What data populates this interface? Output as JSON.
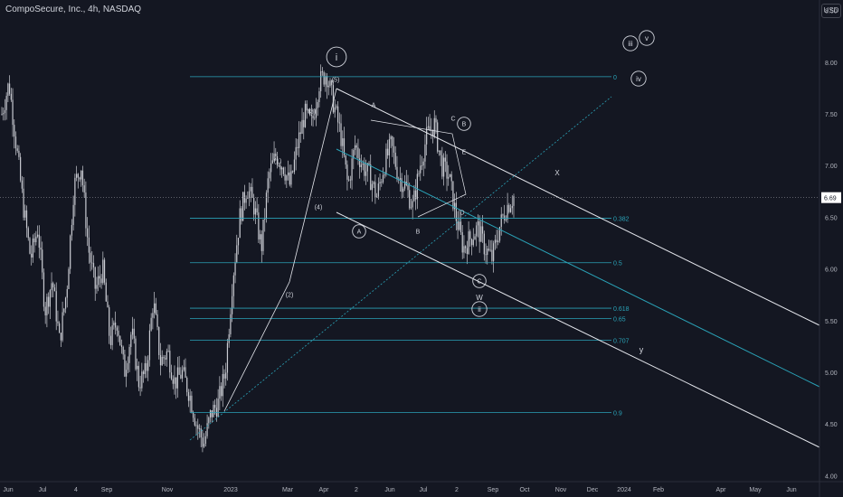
{
  "header": {
    "title": "CompoSecure, Inc., 4h, NASDAQ",
    "currency": "USD"
  },
  "colors": {
    "bg": "#141722",
    "candle": "#c9cbd2",
    "fib": "#2aa3b8",
    "channel": "#e6e8ee",
    "text": "#d1d4dc",
    "axis_text": "#b2b5be"
  },
  "chart_data": {
    "type": "candlestick",
    "title": "CompoSecure, Inc., 4h, NASDAQ",
    "x_ticks": [
      "Jun",
      "Jul",
      "4",
      "Sep",
      "Nov",
      "2023",
      "Mar",
      "Apr",
      "2",
      "Jun",
      "Jul",
      "2",
      "Sep",
      "Oct",
      "Nov",
      "Dec",
      "2024",
      "Feb",
      "Apr",
      "May",
      "Jun"
    ],
    "y_ticks": [
      "8.50",
      "8.00",
      "7.50",
      "7.00",
      "6.50",
      "6.00",
      "5.50",
      "5.00",
      "4.50",
      "4.00"
    ],
    "ylim": [
      3.95,
      8.55
    ],
    "last_price": "6.69",
    "price_path": [
      7.5,
      7.8,
      7.2,
      6.6,
      6.1,
      6.4,
      5.6,
      5.9,
      5.3,
      5.8,
      6.8,
      7.0,
      6.2,
      5.8,
      6.0,
      5.3,
      5.5,
      5.0,
      5.4,
      4.9,
      5.0,
      5.7,
      5.1,
      5.2,
      4.9,
      5.0,
      4.8,
      4.5,
      4.3,
      4.6,
      4.7,
      5.0,
      5.9,
      6.5,
      6.8,
      6.6,
      6.2,
      6.9,
      7.1,
      7.0,
      6.8,
      7.2,
      7.5,
      7.4,
      7.8,
      7.9,
      7.6,
      7.3,
      6.8,
      7.2,
      7.0,
      6.9,
      6.7,
      7.0,
      7.2,
      6.9,
      6.8,
      6.6,
      7.0,
      7.3,
      7.4,
      7.0,
      6.9,
      6.5,
      6.2,
      6.3,
      6.4,
      6.2,
      6.1,
      6.4,
      6.6,
      6.7
    ],
    "fib_levels": [
      {
        "label": "0",
        "value": 7.86
      },
      {
        "label": "0.382",
        "value": 6.49
      },
      {
        "label": "0.5",
        "value": 6.06
      },
      {
        "label": "0.618",
        "value": 5.62
      },
      {
        "label": "0.65",
        "value": 5.52
      },
      {
        "label": "0.707",
        "value": 5.31
      },
      {
        "label": "0.9",
        "value": 4.61
      }
    ],
    "wave_labels": [
      {
        "text": "i",
        "circled": true
      },
      {
        "text": "(5)"
      },
      {
        "text": "(3)"
      },
      {
        "text": "(1)"
      },
      {
        "text": "(4)"
      },
      {
        "text": "(2)"
      },
      {
        "text": "A"
      },
      {
        "text": "A",
        "circled": true
      },
      {
        "text": "B"
      },
      {
        "text": "C"
      },
      {
        "text": "B",
        "circled": true
      },
      {
        "text": "E"
      },
      {
        "text": "D"
      },
      {
        "text": "C",
        "circled": true
      },
      {
        "text": "W"
      },
      {
        "text": "ii",
        "circled": true
      },
      {
        "text": "X"
      },
      {
        "text": "y"
      },
      {
        "text": "iii",
        "circled": true
      },
      {
        "text": "v",
        "circled": true
      },
      {
        "text": "iv",
        "circled": true
      }
    ]
  }
}
